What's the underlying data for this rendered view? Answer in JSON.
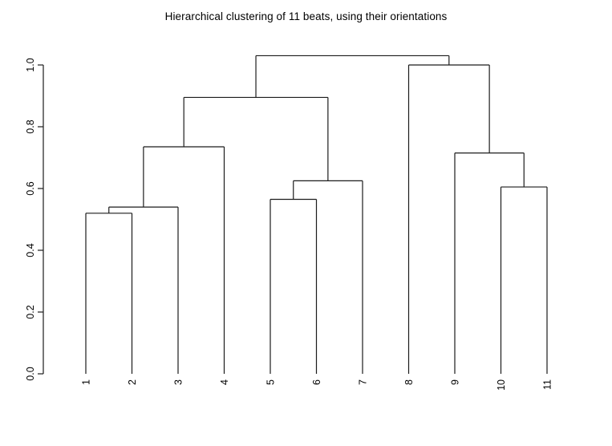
{
  "page": {
    "background": "#ffffff"
  },
  "chart_data": {
    "type": "dendrogram",
    "title": "Hierarchical clustering of 11 beats, using their orientations",
    "xlabel": "",
    "ylabel": "",
    "leaf_labels": [
      "1",
      "2",
      "3",
      "4",
      "5",
      "6",
      "7",
      "8",
      "9",
      "10",
      "11"
    ],
    "merges": [
      {
        "id": "n1",
        "a": "L1",
        "b": "L2",
        "height": 0.52
      },
      {
        "id": "n2",
        "a": "n1",
        "b": "L3",
        "height": 0.54
      },
      {
        "id": "n3",
        "a": "n2",
        "b": "L4",
        "height": 0.735
      },
      {
        "id": "n4",
        "a": "L5",
        "b": "L6",
        "height": 0.565
      },
      {
        "id": "n5",
        "a": "n4",
        "b": "L7",
        "height": 0.625
      },
      {
        "id": "n6",
        "a": "n3",
        "b": "n5",
        "height": 0.895
      },
      {
        "id": "n7",
        "a": "L10",
        "b": "L11",
        "height": 0.605
      },
      {
        "id": "n8",
        "a": "L9",
        "b": "n7",
        "height": 0.715
      },
      {
        "id": "n9",
        "a": "L8",
        "b": "n8",
        "height": 1.0
      },
      {
        "id": "n10",
        "a": "n6",
        "b": "n9",
        "height": 1.03
      }
    ],
    "y_axis": {
      "tick_labels": [
        "0.0",
        "0.2",
        "0.4",
        "0.6",
        "0.8",
        "1.0"
      ],
      "tick_values": [
        0.0,
        0.2,
        0.4,
        0.6,
        0.8,
        1.0
      ],
      "ylim": [
        0.0,
        1.03
      ],
      "grid": "off",
      "legend": "none"
    },
    "colors": {
      "line": "#1c1c1c",
      "axis": "#000000",
      "text": "#000000",
      "background": "#ffffff"
    }
  }
}
